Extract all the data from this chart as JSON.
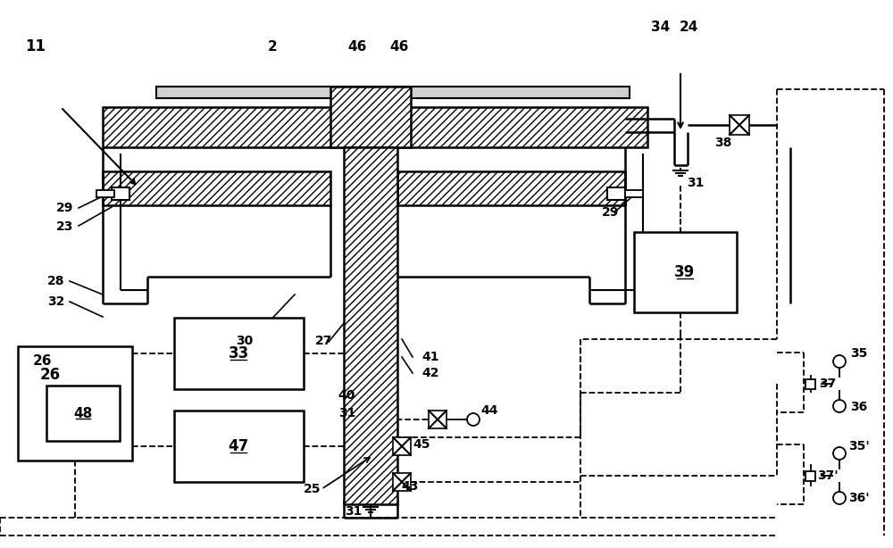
{
  "bg": "#ffffff",
  "lc": "#000000",
  "fig_w": 10.0,
  "fig_h": 6.14,
  "dpi": 100
}
